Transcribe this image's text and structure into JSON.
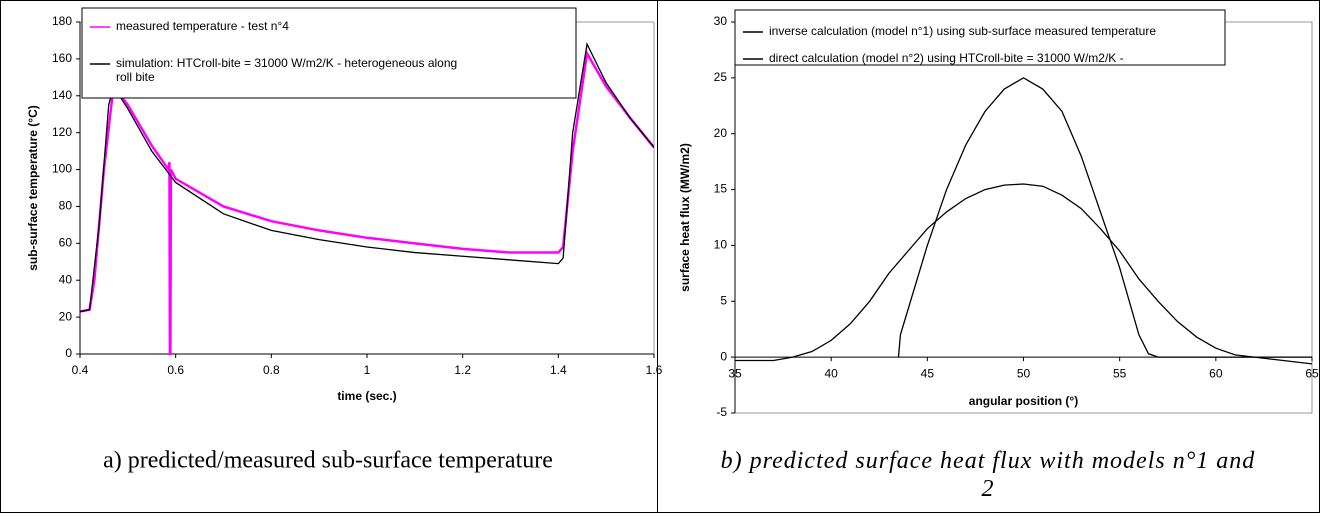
{
  "chart_data": [
    {
      "type": "line",
      "caption": "a) predicted/measured sub-surface temperature",
      "x_label": "time (sec.)",
      "y_label": "sub-surface temperature (°C)",
      "xlim": [
        0.4,
        1.6
      ],
      "xticks": [
        0.4,
        0.6,
        0.8,
        1,
        1.2,
        1.4,
        1.6
      ],
      "ylim": [
        0,
        180
      ],
      "yticks": [
        0,
        20,
        40,
        60,
        80,
        100,
        120,
        140,
        160,
        180
      ],
      "legend": "upper left",
      "series": [
        {
          "name": "measured temperature - test n°4",
          "color": "#ff00ff",
          "x": [
            0.4,
            0.42,
            0.43,
            0.45,
            0.47,
            0.5,
            0.55,
            0.585,
            0.587,
            0.588,
            0.589,
            0.59,
            0.6,
            0.7,
            0.8,
            0.9,
            1.0,
            1.1,
            1.2,
            1.3,
            1.4,
            1.41,
            1.43,
            1.46,
            1.5,
            1.55,
            1.6
          ],
          "values": [
            23,
            24,
            40,
            100,
            145,
            135,
            113,
            100,
            104,
            0,
            0,
            100,
            95,
            80,
            72,
            67,
            63,
            60,
            57,
            55,
            55,
            58,
            110,
            163,
            145,
            128,
            112
          ]
        },
        {
          "name": "simulation: HTCroll-bite = 31000 W/m2/K - heterogeneous along roll bite",
          "color": "#000000",
          "x": [
            0.4,
            0.42,
            0.44,
            0.46,
            0.47,
            0.5,
            0.55,
            0.6,
            0.7,
            0.8,
            0.9,
            1.0,
            1.1,
            1.2,
            1.3,
            1.4,
            1.41,
            1.43,
            1.46,
            1.5,
            1.55,
            1.6
          ],
          "values": [
            23,
            24,
            70,
            135,
            145,
            133,
            110,
            93,
            76,
            67,
            62,
            58,
            55,
            53,
            51,
            49,
            52,
            120,
            168,
            147,
            128,
            112
          ]
        }
      ]
    },
    {
      "type": "line",
      "caption": "b) predicted surface heat flux with models n°1 and 2",
      "x_label": "angular position (°)",
      "y_label": "surface heat flux (MW/m2)",
      "xlim": [
        35,
        65
      ],
      "xticks": [
        35,
        40,
        45,
        50,
        55,
        60,
        65
      ],
      "ylim": [
        -5,
        30
      ],
      "yticks": [
        -5,
        0,
        5,
        10,
        15,
        20,
        25,
        30
      ],
      "legend": "upper left",
      "series": [
        {
          "name": "inverse calculation (model n°1) using sub-surface measured temperature",
          "color": "#000000",
          "x": [
            35,
            37,
            38,
            39,
            40,
            41,
            42,
            43,
            44,
            45,
            46,
            47,
            48,
            49,
            50,
            51,
            52,
            53,
            54,
            55,
            56,
            57,
            58,
            59,
            60,
            61,
            62,
            63,
            64,
            65
          ],
          "values": [
            -0.3,
            -0.3,
            0,
            0.5,
            1.5,
            3,
            5,
            7.5,
            9.5,
            11.5,
            13,
            14.2,
            15,
            15.4,
            15.5,
            15.3,
            14.5,
            13.3,
            11.5,
            9.5,
            7,
            5,
            3.2,
            1.8,
            0.8,
            0.2,
            0,
            -0.2,
            -0.4,
            -0.6
          ]
        },
        {
          "name": "direct calculation (model n°2) using HTCroll-bite = 31000 W/m2/K -",
          "color": "#000000",
          "x": [
            43.5,
            43.6,
            45,
            46,
            47,
            48,
            49,
            50,
            51,
            52,
            53,
            54,
            55,
            56,
            56.5,
            57,
            65
          ],
          "values": [
            0,
            2,
            10,
            15,
            19,
            22,
            24,
            25,
            24,
            22,
            18,
            13,
            8,
            2,
            0.3,
            0,
            0
          ]
        }
      ]
    }
  ]
}
